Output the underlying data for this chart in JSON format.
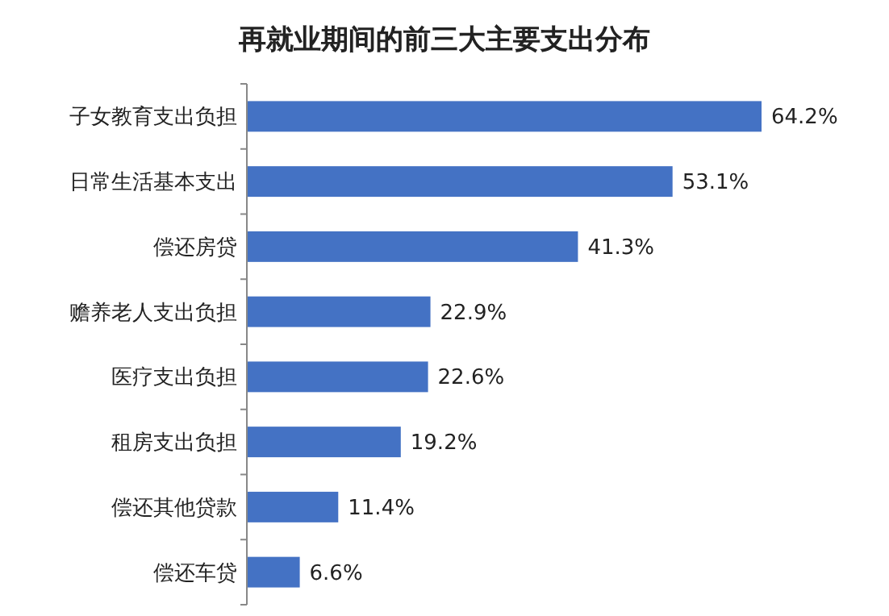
{
  "chart_data": {
    "type": "bar",
    "orientation": "horizontal",
    "title": "再就业期间的前三大主要支出分布",
    "categories": [
      "子女教育支出负担",
      "日常生活基本支出",
      "偿还房贷",
      "赡养老人支出负担",
      "医疗支出负担",
      "租房支出负担",
      "偿还其他贷款",
      "偿还车贷"
    ],
    "values": [
      64.2,
      53.1,
      41.3,
      22.9,
      22.6,
      19.2,
      11.4,
      6.6
    ],
    "value_labels": [
      "64.2%",
      "53.1%",
      "41.3%",
      "22.9%",
      "22.6%",
      "19.2%",
      "11.4%",
      "6.6%"
    ],
    "color": "#4472c4"
  }
}
